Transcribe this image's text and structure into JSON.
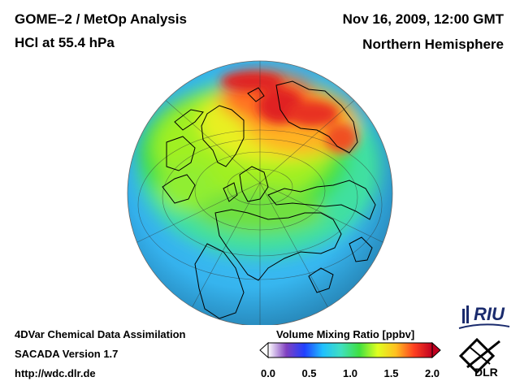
{
  "header": {
    "title": "GOME–2 / MetOp Analysis",
    "species": "HCl at 55.4 hPa",
    "datetime": "Nov 16, 2009, 12:00 GMT",
    "region": "Northern Hemisphere"
  },
  "footer": {
    "method": "4DVar Chemical Data Assimilation",
    "version": "SACADA Version 1.7",
    "url": "http://wdc.dlr.de"
  },
  "colorbar": {
    "title": "Volume Mixing Ratio [ppbv]",
    "min": 0.0,
    "max": 2.0,
    "ticks": [
      "0.0",
      "0.5",
      "1.0",
      "1.5",
      "2.0"
    ],
    "colors": [
      "#ffffff",
      "#8040c0",
      "#2040ff",
      "#20c0ff",
      "#40e0c0",
      "#40e040",
      "#e0ff20",
      "#ffc020",
      "#ff4020",
      "#c00020"
    ]
  },
  "logos": {
    "riu": "RIU",
    "dlr": "DLR"
  },
  "map": {
    "projection": "orthographic",
    "hemisphere": "Northern Hemisphere",
    "field_colors": {
      "background_low": "#40b8f0",
      "mid": "#40e0a0",
      "green": "#40e040",
      "yellow": "#f0f020",
      "orange": "#ffb020",
      "red": "#e02020"
    }
  }
}
